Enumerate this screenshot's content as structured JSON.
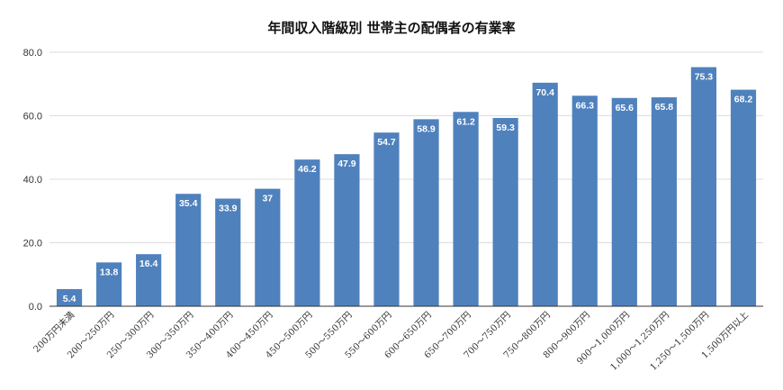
{
  "chart_data": {
    "type": "bar",
    "title": "年間収入階級別 世帯主の配偶者の有業率",
    "xlabel": "",
    "ylabel": "",
    "ylim": [
      0,
      80
    ],
    "yticks": [
      "0.0",
      "20.0",
      "40.0",
      "60.0",
      "80.0"
    ],
    "grid": true,
    "legend": "none",
    "bar_color": "#4f81bd",
    "categories": [
      "200万円未満",
      "200～250万円",
      "250～300万円",
      "300～350万円",
      "350～400万円",
      "400～450万円",
      "450～500万円",
      "500～550万円",
      "550～600万円",
      "600～650万円",
      "650～700万円",
      "700～750万円",
      "750～800万円",
      "800～900万円",
      "900～1,000万円",
      "1,000～1,250万円",
      "1,250～1,500万円",
      "1,500万円以上"
    ],
    "values": [
      5.4,
      13.8,
      16.4,
      35.4,
      33.9,
      37,
      46.2,
      47.9,
      54.7,
      58.9,
      61.2,
      59.3,
      70.4,
      66.3,
      65.6,
      65.8,
      75.3,
      68.2
    ],
    "data_labels": [
      "5.4",
      "13.8",
      "16.4",
      "35.4",
      "33.9",
      "37",
      "46.2",
      "47.9",
      "54.7",
      "58.9",
      "61.2",
      "59.3",
      "70.4",
      "66.3",
      "65.6",
      "65.8",
      "75.3",
      "68.2"
    ]
  }
}
